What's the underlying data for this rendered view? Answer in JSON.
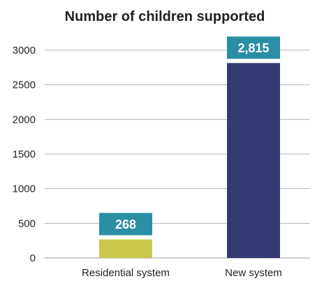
{
  "chart_data": {
    "type": "bar",
    "title": "Number of children supported",
    "xlabel": "",
    "ylabel": "",
    "categories": [
      "Residential system",
      "New system"
    ],
    "values": [
      268,
      2815
    ],
    "data_labels": [
      "268",
      "2,815"
    ],
    "ylim": [
      0,
      3000
    ],
    "yticks": [
      0,
      500,
      1000,
      1500,
      2000,
      2500,
      3000
    ],
    "grid": true,
    "legend": "none",
    "bar_colors": [
      "#c8c84a",
      "#353a72"
    ],
    "label_box_color": "#2a8fa5"
  }
}
